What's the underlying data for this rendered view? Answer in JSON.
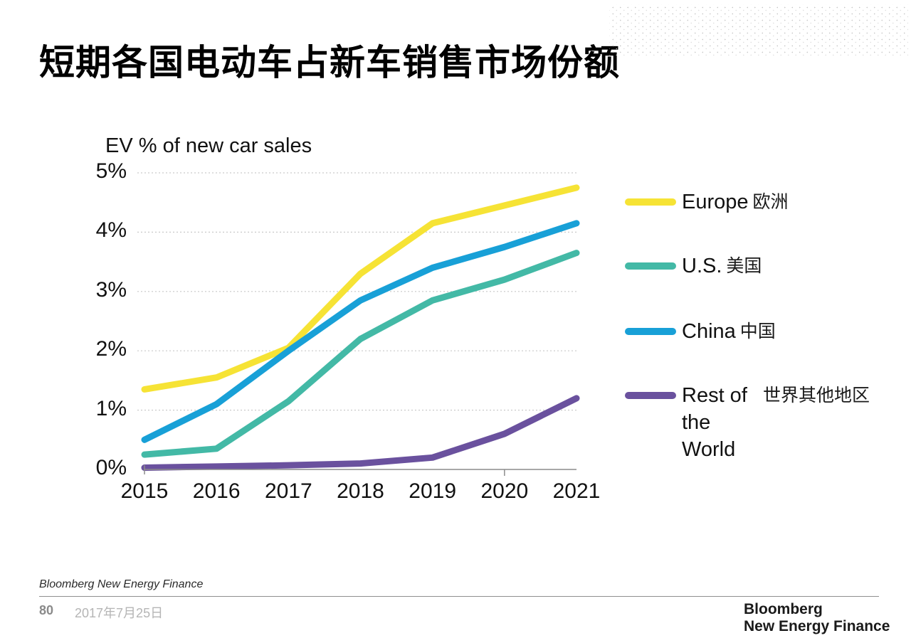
{
  "page": {
    "title": "短期各国电动车占新车销售市场份额",
    "footer_source": "Bloomberg New Energy Finance",
    "page_number": "80",
    "date": "2017年7月25日",
    "logo_line1": "Bloomberg",
    "logo_line2": "New Energy Finance"
  },
  "chart_data": {
    "type": "line",
    "title": "EV % of new car sales",
    "xlabel": "",
    "ylabel": "EV % of new car sales",
    "categories": [
      "2015",
      "2016",
      "2017",
      "2018",
      "2019",
      "2020",
      "2021"
    ],
    "series": [
      {
        "name": "Europe",
        "name_zh": "欧洲",
        "color": "#F6E335",
        "values": [
          1.35,
          1.55,
          2.05,
          3.3,
          4.15,
          4.45,
          4.75
        ]
      },
      {
        "name": "U.S.",
        "name_zh": "美国",
        "color": "#43B9A6",
        "values": [
          0.25,
          0.35,
          1.15,
          2.2,
          2.85,
          3.2,
          3.65
        ]
      },
      {
        "name": "China",
        "name_zh": "中国",
        "color": "#18A0D7",
        "values": [
          0.5,
          1.1,
          2.0,
          2.85,
          3.4,
          3.75,
          4.15
        ]
      },
      {
        "name": "Rest of the World",
        "name_zh": "世界其他地区",
        "color": "#6A519E",
        "values": [
          0.03,
          0.05,
          0.07,
          0.1,
          0.2,
          0.6,
          1.2
        ]
      }
    ],
    "ylim": [
      0,
      5
    ],
    "yticks": [
      0,
      1,
      2,
      3,
      4,
      5
    ],
    "ytick_suffix": "%",
    "grid": true,
    "gridline_style": "dotted",
    "legend_position": "right"
  },
  "colors": {
    "gridline": "#c9c9c9",
    "axis": "#8c8c8c",
    "text": "#111111"
  }
}
